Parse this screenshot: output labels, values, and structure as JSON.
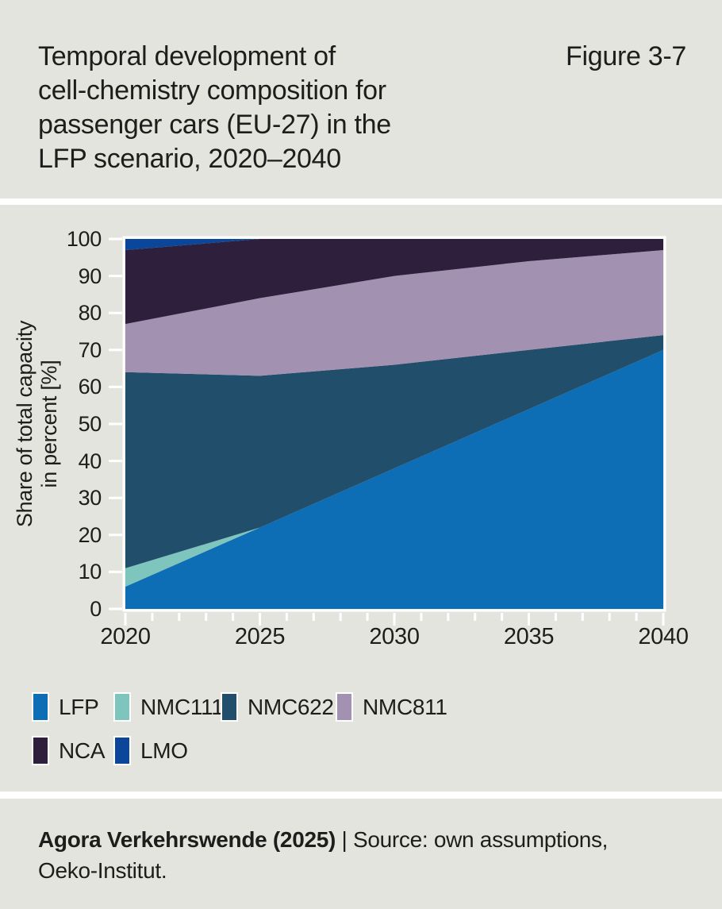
{
  "header": {
    "title_lines": [
      "Temporal development of",
      "cell-chemistry composition for",
      "passenger cars (EU-27) in the",
      "LFP scenario, 2020–2040"
    ],
    "figure_label": "Figure 3-7"
  },
  "chart_data": {
    "type": "area",
    "stacked": true,
    "title": "Temporal development of cell-chemistry composition for passenger cars (EU-27) in the LFP scenario, 2020–2040",
    "x": [
      2020,
      2025,
      2030,
      2035,
      2040
    ],
    "series": [
      {
        "name": "LFP",
        "color": "#0d6eb5",
        "values": [
          6,
          22,
          38,
          54,
          70
        ]
      },
      {
        "name": "NMC111",
        "color": "#7ec5bd",
        "values": [
          5,
          0,
          0,
          0,
          0
        ]
      },
      {
        "name": "NMC622",
        "color": "#214e6a",
        "values": [
          53,
          41,
          28,
          16,
          4
        ]
      },
      {
        "name": "NMC811",
        "color": "#a291b0",
        "values": [
          13,
          21,
          24,
          24,
          23
        ]
      },
      {
        "name": "NCA",
        "color": "#2e1f3d",
        "values": [
          20,
          16,
          10,
          6,
          3
        ]
      },
      {
        "name": "LMO",
        "color": "#0a4699",
        "values": [
          3,
          0,
          0,
          0,
          0
        ]
      }
    ],
    "xlabel": "",
    "ylabel_lines": [
      "Share of total capacity",
      "in percent [%]"
    ],
    "ylabel": "Share of total capacity in percent [%]",
    "xlim": [
      2020,
      2040
    ],
    "ylim": [
      0,
      100
    ],
    "y_ticks": [
      0,
      10,
      20,
      30,
      40,
      50,
      60,
      70,
      80,
      90,
      100
    ],
    "x_ticks": [
      2020,
      2025,
      2030,
      2035,
      2040
    ],
    "x_minor_tick_step": 1,
    "grid": false,
    "frame_color": "#ffffff",
    "background_color": "#e4e4df",
    "legend_position": "below"
  },
  "legend": {
    "rows": [
      [
        "LFP",
        "NMC111",
        "NMC622",
        "NMC811"
      ],
      [
        "NCA",
        "LMO"
      ]
    ]
  },
  "footer": {
    "brand": "Agora Verkehrswende (2025)",
    "source_line1": " | Source: own assumptions,",
    "source_line2": "Oeko-Institut."
  }
}
